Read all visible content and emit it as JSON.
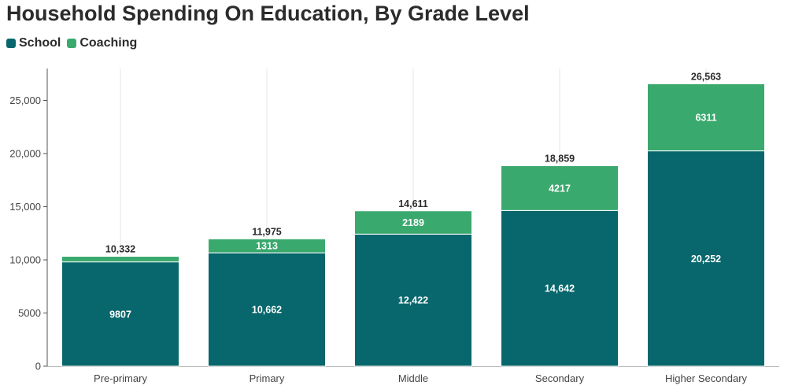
{
  "chart_data": {
    "type": "bar",
    "stacked": true,
    "title": "Household Spending On Education, By Grade Level",
    "categories": [
      "Pre-primary",
      "Primary",
      "Middle",
      "Secondary",
      "Higher Secondary"
    ],
    "series": [
      {
        "name": "School",
        "color": "#07676c",
        "values": [
          9807,
          10662,
          12422,
          14642,
          20252
        ],
        "labels": [
          "9807",
          "10,662",
          "12,422",
          "14,642",
          "20,252"
        ]
      },
      {
        "name": "Coaching",
        "color": "#3aa96e",
        "values": [
          525,
          1313,
          2189,
          4217,
          6311
        ],
        "labels": [
          "",
          "1313",
          "2189",
          "4217",
          "6311"
        ]
      }
    ],
    "totals": [
      10332,
      11975,
      14611,
      18859,
      26563
    ],
    "total_labels": [
      "10,332",
      "11,975",
      "14,611",
      "18,859",
      "26,563"
    ],
    "yticks": [
      0,
      5000,
      10000,
      15000,
      20000,
      25000
    ],
    "ytick_labels": [
      "0",
      "5000",
      "10,000",
      "15,000",
      "20,000",
      "25,000"
    ],
    "ylim": [
      0,
      28000
    ],
    "xlabel": "",
    "ylabel": "",
    "grid": "vertical",
    "legend_position": "top-left"
  }
}
